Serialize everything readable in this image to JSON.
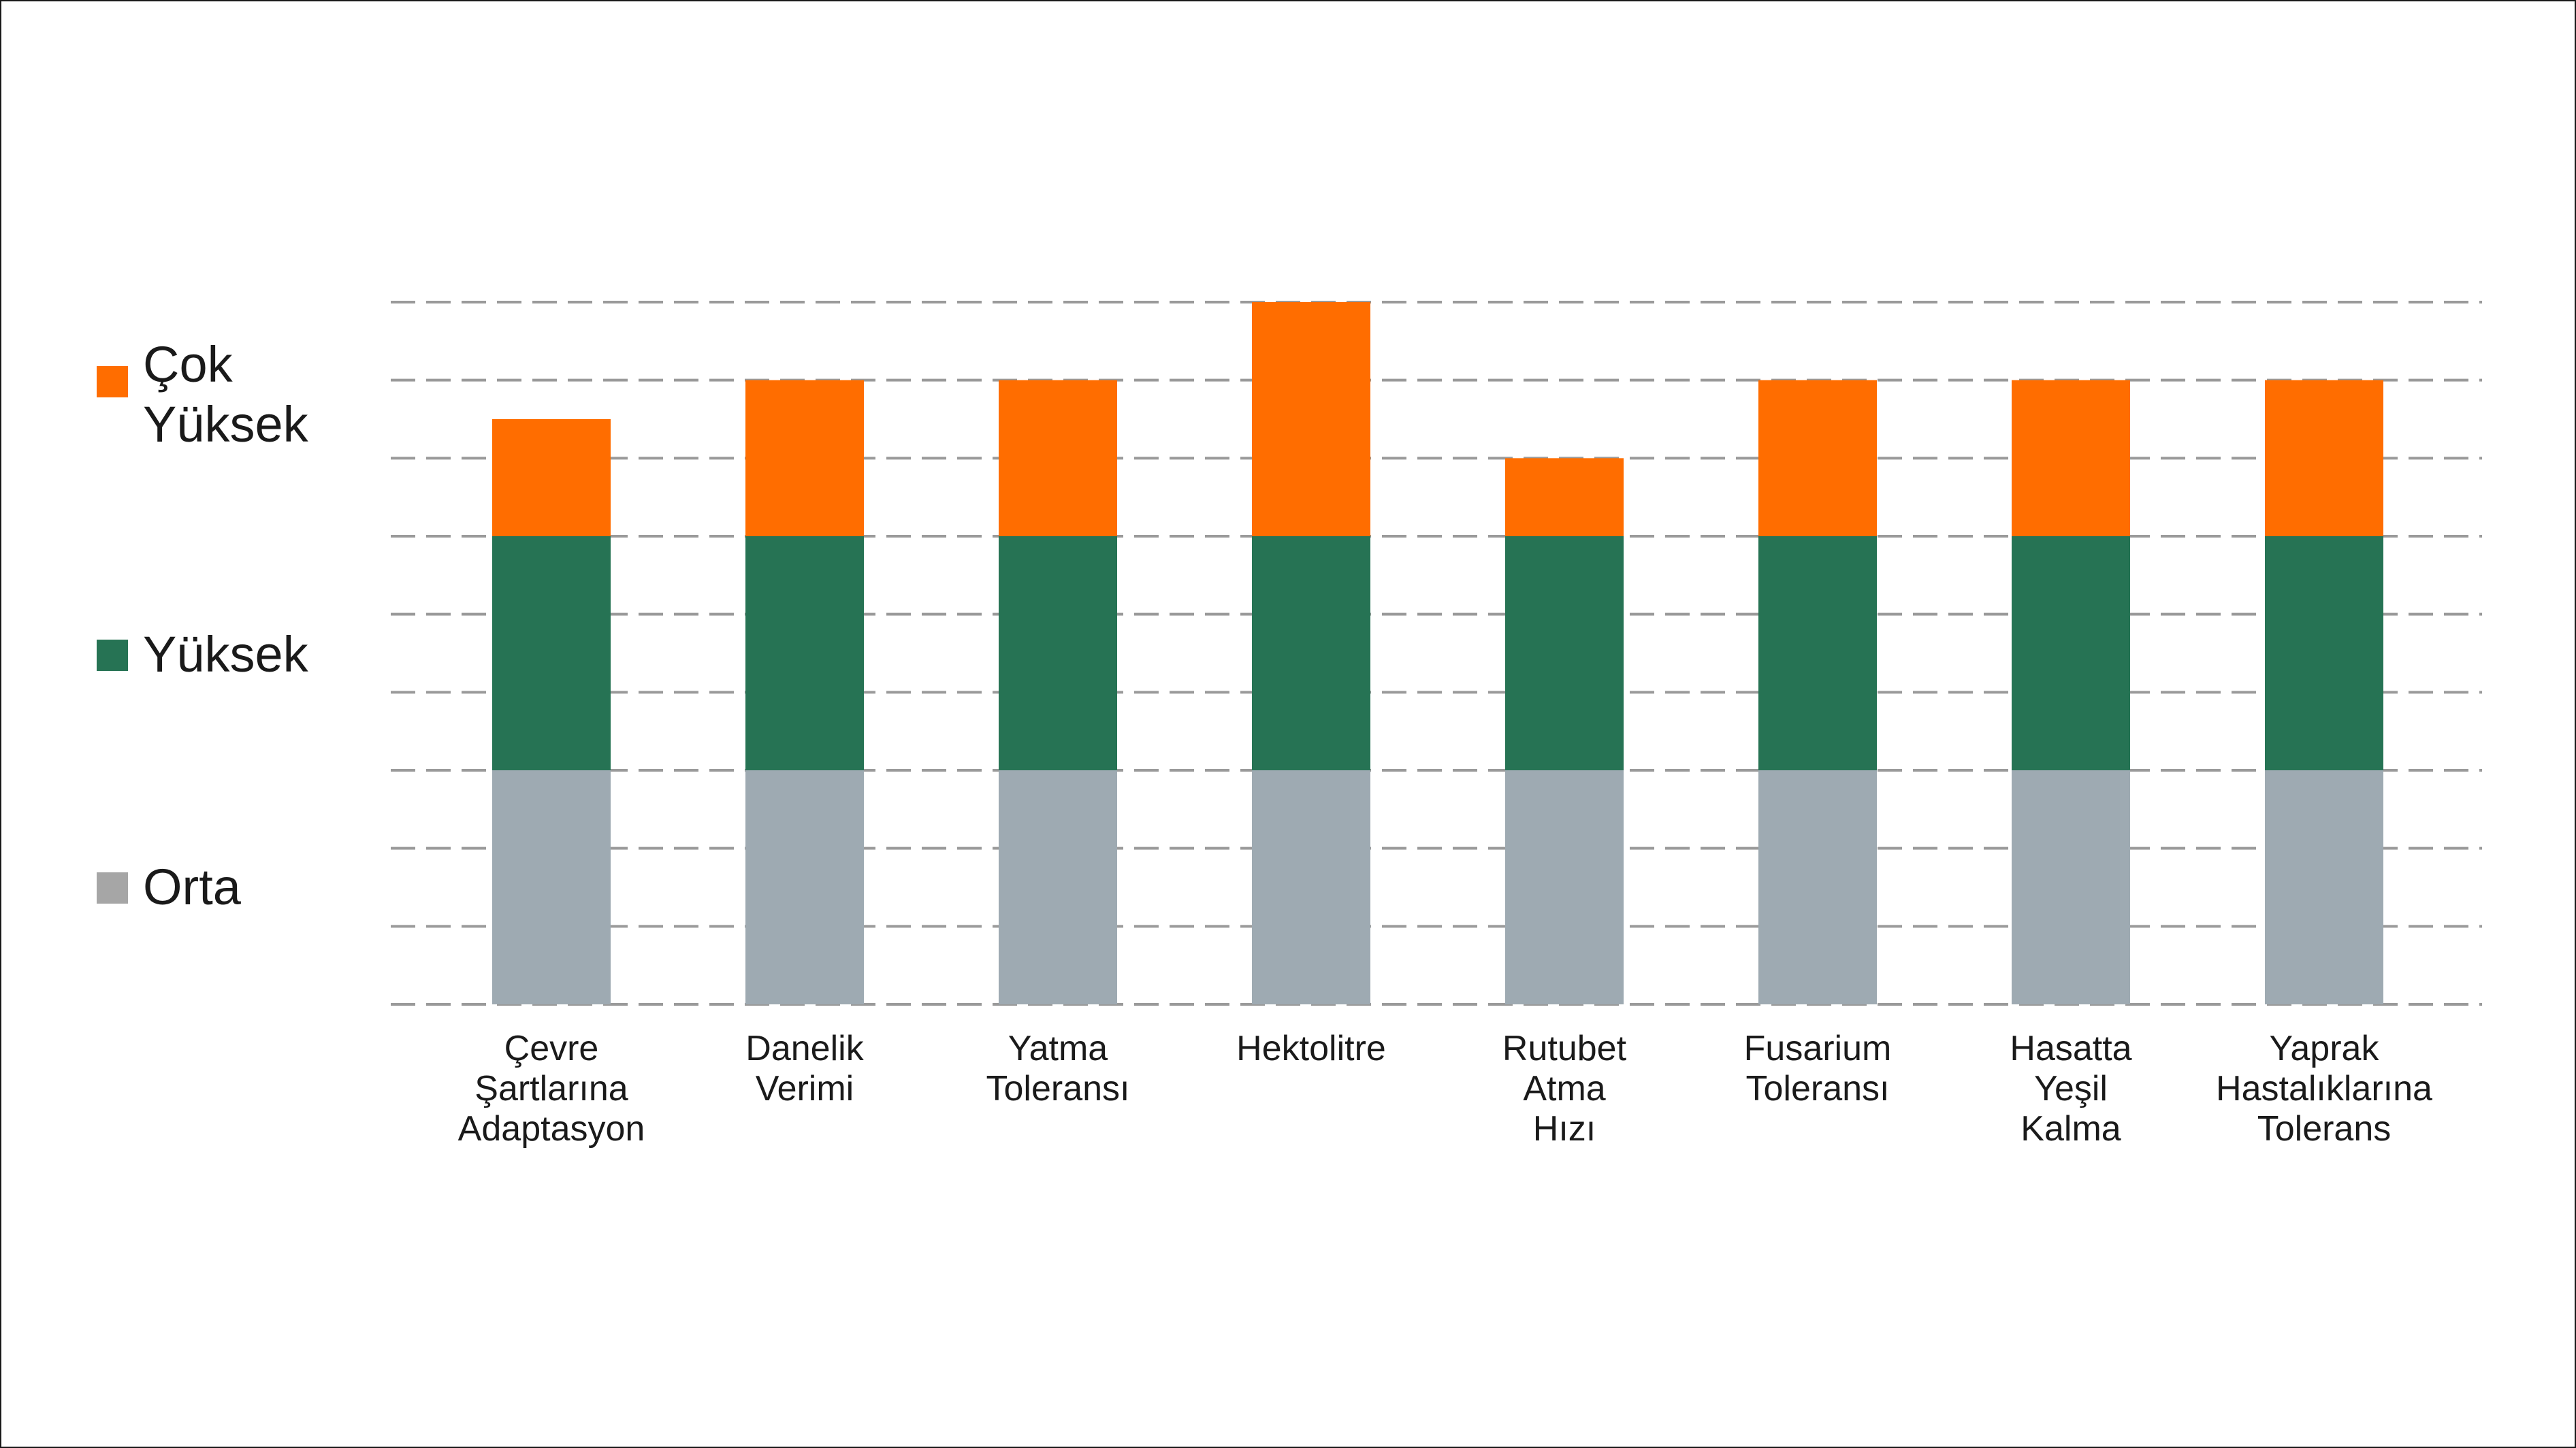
{
  "chart_data": {
    "type": "bar",
    "stacked": true,
    "categories": [
      "Çevre\nŞartlarına\nAdaptasyon",
      "Danelik\nVerimi",
      "Yatma\nToleransı",
      "Hektolitre",
      "Rutubet\nAtma\nHızı",
      "Fusarium\nToleransı",
      "Hasatta\nYeşil\nKalma",
      "Yaprak\nHastalıklarına\nTolerans"
    ],
    "series": [
      {
        "name": "Orta",
        "color": "#9eaab2",
        "values": [
          3,
          3,
          3,
          3,
          3,
          3,
          3,
          3
        ]
      },
      {
        "name": "Yüksek",
        "color": "#267354",
        "values": [
          3,
          3,
          3,
          3,
          3,
          3,
          3,
          3
        ]
      },
      {
        "name": "Çok\nYüksek",
        "color": "#ff6d00",
        "values": [
          1.5,
          2,
          2,
          3,
          1,
          2,
          2,
          2
        ]
      }
    ],
    "ylim": [
      0,
      9
    ],
    "grid": true,
    "legend_position": "left"
  },
  "legend": [
    {
      "label": "Çok\nYüksek",
      "color": "#ff6d00",
      "icon": "square-swatch"
    },
    {
      "label": "Yüksek",
      "color": "#267354",
      "icon": "square-swatch"
    },
    {
      "label": "Orta",
      "color": "#a6a6a6",
      "icon": "square-swatch"
    }
  ],
  "grid_color": "#9a9a9a"
}
